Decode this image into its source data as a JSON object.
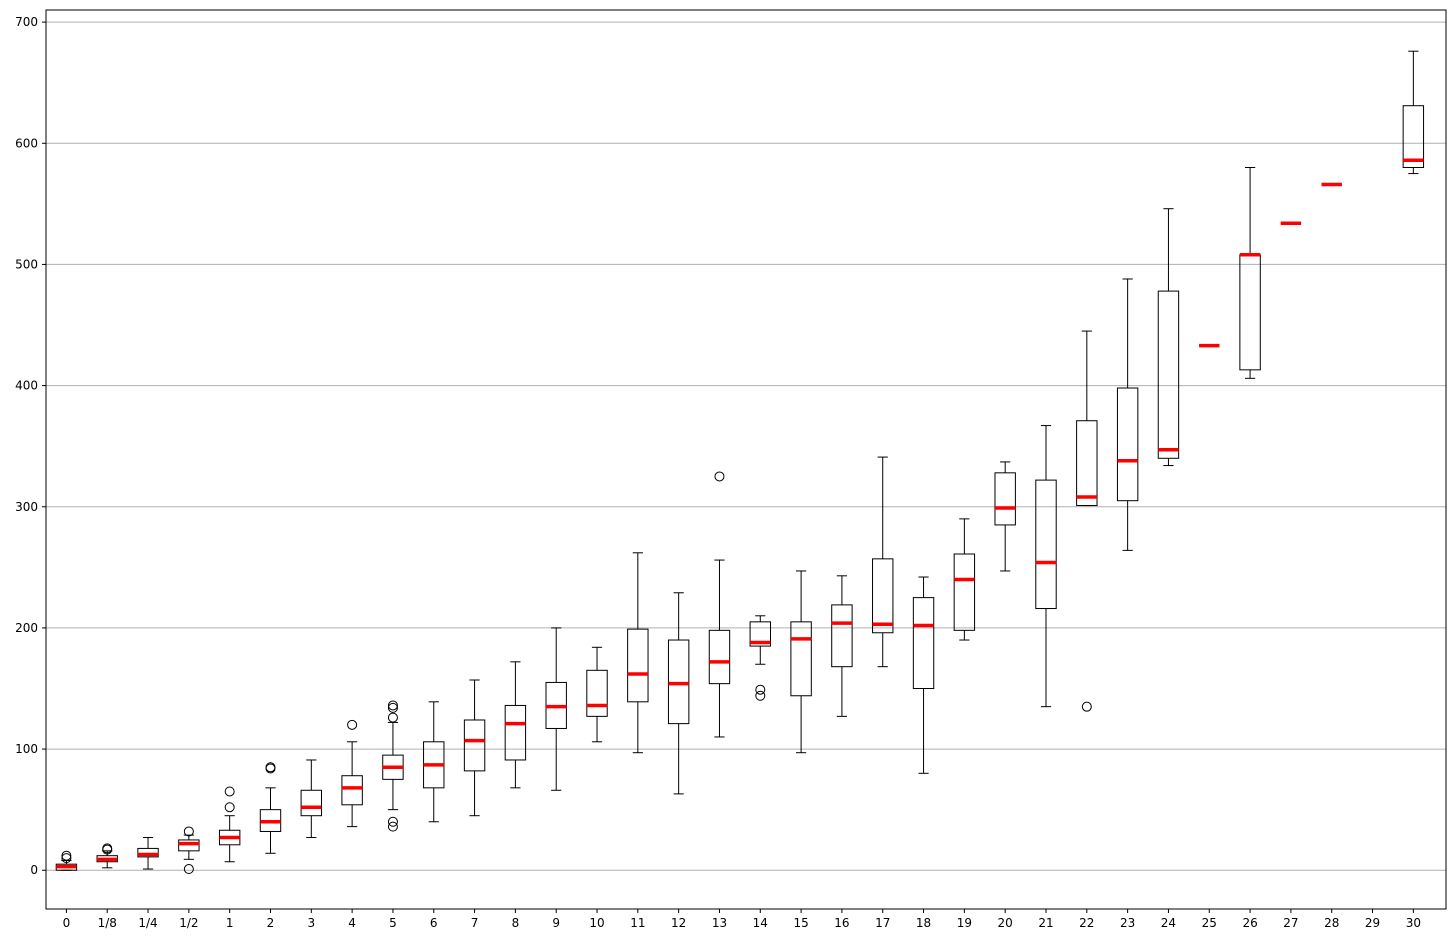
{
  "chart_data": {
    "type": "box",
    "title": "",
    "xlabel": "",
    "ylabel": "",
    "ylim": [
      -32,
      710
    ],
    "y_ticks": [
      0,
      100,
      200,
      300,
      400,
      500,
      600,
      700
    ],
    "grid": "y",
    "colors": {
      "box": "#000000",
      "median": "#ff0000",
      "grid": "#b0b0b0"
    },
    "categories": [
      "0",
      "1/8",
      "1/4",
      "1/2",
      "1",
      "2",
      "3",
      "4",
      "5",
      "6",
      "7",
      "8",
      "9",
      "10",
      "11",
      "12",
      "13",
      "14",
      "15",
      "16",
      "17",
      "18",
      "19",
      "20",
      "21",
      "22",
      "23",
      "24",
      "25",
      "26",
      "27",
      "28",
      "29",
      "30"
    ],
    "boxes": [
      {
        "label": "0",
        "whislo": 0,
        "q1": 0,
        "med": 3,
        "q3": 5,
        "whishi": 8,
        "fliers": [
          10,
          12
        ]
      },
      {
        "label": "1/8",
        "whislo": 2,
        "q1": 7,
        "med": 9,
        "q3": 12,
        "whishi": 16,
        "fliers": [
          17,
          18
        ]
      },
      {
        "label": "1/4",
        "whislo": 1,
        "q1": 11,
        "med": 13,
        "q3": 18,
        "whishi": 27,
        "fliers": []
      },
      {
        "label": "1/2",
        "whislo": 9,
        "q1": 16,
        "med": 22,
        "q3": 25,
        "whishi": 29,
        "fliers": [
          1,
          32
        ]
      },
      {
        "label": "1",
        "whislo": 7,
        "q1": 21,
        "med": 27,
        "q3": 33,
        "whishi": 45,
        "fliers": [
          52,
          65
        ]
      },
      {
        "label": "2",
        "whislo": 14,
        "q1": 32,
        "med": 40,
        "q3": 50,
        "whishi": 68,
        "fliers": [
          84,
          85
        ]
      },
      {
        "label": "3",
        "whislo": 27,
        "q1": 45,
        "med": 52,
        "q3": 66,
        "whishi": 91,
        "fliers": []
      },
      {
        "label": "4",
        "whislo": 36,
        "q1": 54,
        "med": 68,
        "q3": 78,
        "whishi": 106,
        "fliers": [
          120
        ]
      },
      {
        "label": "5",
        "whislo": 50,
        "q1": 75,
        "med": 85,
        "q3": 95,
        "whishi": 122,
        "fliers": [
          36,
          40,
          126,
          134,
          136
        ]
      },
      {
        "label": "6",
        "whislo": 40,
        "q1": 68,
        "med": 87,
        "q3": 106,
        "whishi": 139,
        "fliers": []
      },
      {
        "label": "7",
        "whislo": 45,
        "q1": 82,
        "med": 107,
        "q3": 124,
        "whishi": 157,
        "fliers": []
      },
      {
        "label": "8",
        "whislo": 68,
        "q1": 91,
        "med": 121,
        "q3": 136,
        "whishi": 172,
        "fliers": []
      },
      {
        "label": "9",
        "whislo": 66,
        "q1": 117,
        "med": 135,
        "q3": 155,
        "whishi": 200,
        "fliers": []
      },
      {
        "label": "10",
        "whislo": 106,
        "q1": 127,
        "med": 136,
        "q3": 165,
        "whishi": 184,
        "fliers": []
      },
      {
        "label": "11",
        "whislo": 97,
        "q1": 139,
        "med": 162,
        "q3": 199,
        "whishi": 262,
        "fliers": []
      },
      {
        "label": "12",
        "whislo": 63,
        "q1": 121,
        "med": 154,
        "q3": 190,
        "whishi": 229,
        "fliers": []
      },
      {
        "label": "13",
        "whislo": 110,
        "q1": 154,
        "med": 172,
        "q3": 198,
        "whishi": 256,
        "fliers": [
          325
        ]
      },
      {
        "label": "14",
        "whislo": 170,
        "q1": 185,
        "med": 188,
        "q3": 205,
        "whishi": 210,
        "fliers": [
          144,
          149
        ]
      },
      {
        "label": "15",
        "whislo": 97,
        "q1": 144,
        "med": 191,
        "q3": 205,
        "whishi": 247,
        "fliers": []
      },
      {
        "label": "16",
        "whislo": 127,
        "q1": 168,
        "med": 204,
        "q3": 219,
        "whishi": 243,
        "fliers": []
      },
      {
        "label": "17",
        "whislo": 168,
        "q1": 196,
        "med": 203,
        "q3": 257,
        "whishi": 341,
        "fliers": []
      },
      {
        "label": "18",
        "whislo": 80,
        "q1": 150,
        "med": 202,
        "q3": 225,
        "whishi": 242,
        "fliers": []
      },
      {
        "label": "19",
        "whislo": 190,
        "q1": 198,
        "med": 240,
        "q3": 261,
        "whishi": 290,
        "fliers": []
      },
      {
        "label": "20",
        "whislo": 247,
        "q1": 285,
        "med": 299,
        "q3": 328,
        "whishi": 337,
        "fliers": []
      },
      {
        "label": "21",
        "whislo": 135,
        "q1": 216,
        "med": 254,
        "q3": 322,
        "whishi": 367,
        "fliers": []
      },
      {
        "label": "22",
        "whislo": 301,
        "q1": 301,
        "med": 308,
        "q3": 371,
        "whishi": 445,
        "fliers": [
          135
        ]
      },
      {
        "label": "23",
        "whislo": 264,
        "q1": 305,
        "med": 338,
        "q3": 398,
        "whishi": 488,
        "fliers": []
      },
      {
        "label": "24",
        "whislo": 334,
        "q1": 340,
        "med": 347,
        "q3": 478,
        "whishi": 546,
        "fliers": []
      },
      {
        "label": "25",
        "whislo": 433,
        "q1": 433,
        "med": 433,
        "q3": 433,
        "whishi": 433,
        "fliers": []
      },
      {
        "label": "26",
        "whislo": 406,
        "q1": 413,
        "med": 508,
        "q3": 508,
        "whishi": 580,
        "fliers": []
      },
      {
        "label": "27",
        "whislo": 534,
        "q1": 534,
        "med": 534,
        "q3": 534,
        "whishi": 534,
        "fliers": []
      },
      {
        "label": "28",
        "whislo": 566,
        "q1": 566,
        "med": 566,
        "q3": 566,
        "whishi": 566,
        "fliers": []
      },
      {
        "label": "29",
        "whislo": null,
        "q1": null,
        "med": null,
        "q3": null,
        "whishi": null,
        "fliers": []
      },
      {
        "label": "30",
        "whislo": 575,
        "q1": 580,
        "med": 586,
        "q3": 631,
        "whishi": 676,
        "fliers": []
      }
    ]
  }
}
